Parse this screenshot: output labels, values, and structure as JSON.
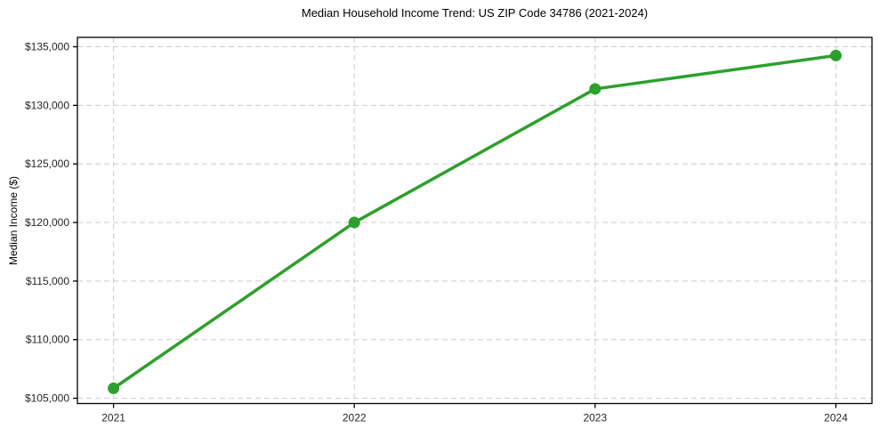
{
  "chart": {
    "title": "Median Household Income Trend: US ZIP Code 34786 (2021-2024)",
    "ylabel": "Median Income ($)"
  },
  "chart_data": {
    "type": "line",
    "title": "Median Household Income Trend: US ZIP Code 34786 (2021-2024)",
    "xlabel": "",
    "ylabel": "Median Income ($)",
    "x": [
      2021,
      2022,
      2023,
      2024
    ],
    "series": [
      {
        "name": "Median Household Income",
        "values": [
          105850,
          120000,
          131400,
          134250
        ]
      }
    ],
    "xticks": [
      2021,
      2022,
      2023,
      2024
    ],
    "xtick_labels": [
      "2021",
      "2022",
      "2023",
      "2024"
    ],
    "yticks": [
      105000,
      110000,
      115000,
      120000,
      125000,
      130000,
      135000
    ],
    "ytick_labels": [
      "$105,000",
      "$110,000",
      "$115,000",
      "$120,000",
      "$125,000",
      "$130,000",
      "$135,000"
    ],
    "xlim": [
      2020.85,
      2024.15
    ],
    "ylim": [
      104550,
      135800
    ],
    "grid": true,
    "legend": "none",
    "line_color": "#2ca02c",
    "marker": "circle",
    "grid_color": "#cccccc",
    "axis_color": "#000000",
    "tick_label_color": "#262626",
    "background_color": "#ffffff"
  }
}
